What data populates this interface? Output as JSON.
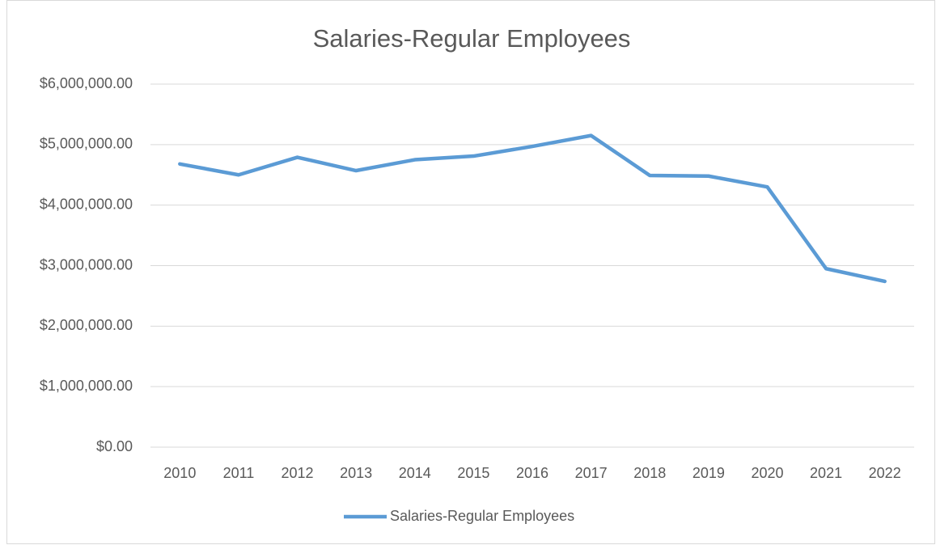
{
  "chart_data": {
    "type": "line",
    "title": "Salaries-Regular Employees",
    "categories": [
      "2010",
      "2011",
      "2012",
      "2013",
      "2014",
      "2015",
      "2016",
      "2017",
      "2018",
      "2019",
      "2020",
      "2021",
      "2022"
    ],
    "series": [
      {
        "name": "Salaries-Regular Employees",
        "color": "#5b9bd5",
        "values": [
          4680000,
          4500000,
          4790000,
          4570000,
          4750000,
          4810000,
          4970000,
          5150000,
          4490000,
          4480000,
          4300000,
          2950000,
          2740000
        ]
      }
    ],
    "ylim": [
      0,
      6000000
    ],
    "yticks": [
      {
        "value": 0,
        "label": "$0.00"
      },
      {
        "value": 1000000,
        "label": "$1,000,000.00"
      },
      {
        "value": 2000000,
        "label": "$2,000,000.00"
      },
      {
        "value": 3000000,
        "label": "$3,000,000.00"
      },
      {
        "value": 4000000,
        "label": "$4,000,000.00"
      },
      {
        "value": 5000000,
        "label": "$5,000,000.00"
      },
      {
        "value": 6000000,
        "label": "$6,000,000.00"
      }
    ],
    "grid": true,
    "legend": "bottom"
  }
}
